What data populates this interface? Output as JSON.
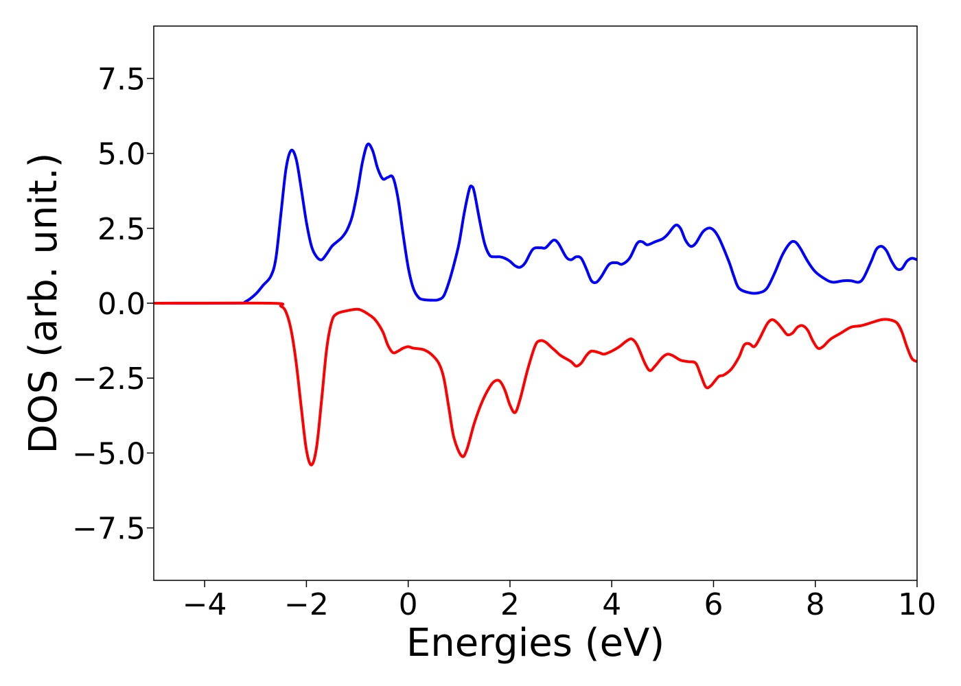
{
  "chart_data": {
    "type": "line",
    "xlabel": "Energies (eV)",
    "ylabel": "DOS (arb. unit.)",
    "xlim": [
      -5,
      10
    ],
    "ylim": [
      -9.25,
      9.25
    ],
    "grid": false,
    "x_ticks": [
      -4,
      -2,
      0,
      2,
      4,
      6,
      8,
      10
    ],
    "x_tick_labels": [
      "−4",
      "−2",
      "0",
      "2",
      "4",
      "6",
      "8",
      "10"
    ],
    "y_ticks": [
      -7.5,
      -5.0,
      -2.5,
      0.0,
      2.5,
      5.0,
      7.5
    ],
    "y_tick_labels": [
      "−7.5",
      "−5.0",
      "−2.5",
      "0.0",
      "2.5",
      "5.0",
      "7.5"
    ],
    "series": [
      {
        "color": "#0000ff",
        "points": [
          [
            -5.0,
            0.0
          ],
          [
            -3.4,
            0.0
          ],
          [
            -3.2,
            0.05
          ],
          [
            -3.0,
            0.3
          ],
          [
            -2.85,
            0.6
          ],
          [
            -2.7,
            0.9
          ],
          [
            -2.6,
            1.5
          ],
          [
            -2.5,
            3.0
          ],
          [
            -2.4,
            4.5
          ],
          [
            -2.3,
            5.1
          ],
          [
            -2.2,
            4.8
          ],
          [
            -2.1,
            3.8
          ],
          [
            -2.0,
            2.7
          ],
          [
            -1.9,
            1.9
          ],
          [
            -1.8,
            1.55
          ],
          [
            -1.7,
            1.45
          ],
          [
            -1.6,
            1.65
          ],
          [
            -1.5,
            1.9
          ],
          [
            -1.4,
            2.05
          ],
          [
            -1.3,
            2.2
          ],
          [
            -1.2,
            2.45
          ],
          [
            -1.1,
            2.9
          ],
          [
            -1.0,
            3.7
          ],
          [
            -0.9,
            4.7
          ],
          [
            -0.8,
            5.3
          ],
          [
            -0.7,
            5.1
          ],
          [
            -0.6,
            4.5
          ],
          [
            -0.5,
            4.15
          ],
          [
            -0.4,
            4.2
          ],
          [
            -0.3,
            4.2
          ],
          [
            -0.2,
            3.5
          ],
          [
            -0.1,
            2.3
          ],
          [
            0.0,
            1.2
          ],
          [
            0.1,
            0.5
          ],
          [
            0.2,
            0.2
          ],
          [
            0.3,
            0.12
          ],
          [
            0.5,
            0.1
          ],
          [
            0.6,
            0.12
          ],
          [
            0.7,
            0.25
          ],
          [
            0.8,
            0.7
          ],
          [
            0.9,
            1.3
          ],
          [
            1.0,
            2.0
          ],
          [
            1.1,
            3.0
          ],
          [
            1.2,
            3.8
          ],
          [
            1.25,
            3.9
          ],
          [
            1.3,
            3.7
          ],
          [
            1.4,
            2.8
          ],
          [
            1.5,
            2.0
          ],
          [
            1.6,
            1.6
          ],
          [
            1.7,
            1.55
          ],
          [
            1.8,
            1.55
          ],
          [
            1.9,
            1.5
          ],
          [
            2.0,
            1.4
          ],
          [
            2.1,
            1.25
          ],
          [
            2.2,
            1.2
          ],
          [
            2.3,
            1.35
          ],
          [
            2.45,
            1.8
          ],
          [
            2.6,
            1.85
          ],
          [
            2.7,
            1.85
          ],
          [
            2.85,
            2.1
          ],
          [
            2.95,
            2.0
          ],
          [
            3.1,
            1.55
          ],
          [
            3.2,
            1.45
          ],
          [
            3.3,
            1.55
          ],
          [
            3.4,
            1.5
          ],
          [
            3.5,
            1.15
          ],
          [
            3.6,
            0.75
          ],
          [
            3.7,
            0.7
          ],
          [
            3.8,
            0.9
          ],
          [
            3.95,
            1.3
          ],
          [
            4.1,
            1.35
          ],
          [
            4.2,
            1.3
          ],
          [
            4.35,
            1.5
          ],
          [
            4.5,
            2.0
          ],
          [
            4.6,
            2.05
          ],
          [
            4.7,
            1.95
          ],
          [
            4.85,
            2.05
          ],
          [
            5.0,
            2.15
          ],
          [
            5.1,
            2.3
          ],
          [
            5.25,
            2.6
          ],
          [
            5.35,
            2.5
          ],
          [
            5.45,
            2.1
          ],
          [
            5.55,
            1.9
          ],
          [
            5.65,
            2.0
          ],
          [
            5.8,
            2.4
          ],
          [
            5.95,
            2.5
          ],
          [
            6.1,
            2.2
          ],
          [
            6.3,
            1.4
          ],
          [
            6.4,
            0.9
          ],
          [
            6.5,
            0.5
          ],
          [
            6.7,
            0.35
          ],
          [
            6.9,
            0.35
          ],
          [
            7.05,
            0.5
          ],
          [
            7.2,
            1.0
          ],
          [
            7.35,
            1.6
          ],
          [
            7.5,
            2.0
          ],
          [
            7.6,
            2.05
          ],
          [
            7.7,
            1.85
          ],
          [
            7.85,
            1.4
          ],
          [
            8.0,
            1.05
          ],
          [
            8.2,
            0.8
          ],
          [
            8.35,
            0.7
          ],
          [
            8.55,
            0.75
          ],
          [
            8.7,
            0.75
          ],
          [
            8.85,
            0.7
          ],
          [
            8.95,
            0.85
          ],
          [
            9.1,
            1.4
          ],
          [
            9.2,
            1.8
          ],
          [
            9.3,
            1.9
          ],
          [
            9.4,
            1.75
          ],
          [
            9.5,
            1.4
          ],
          [
            9.6,
            1.15
          ],
          [
            9.7,
            1.15
          ],
          [
            9.8,
            1.4
          ],
          [
            9.9,
            1.5
          ],
          [
            10.0,
            1.45
          ]
        ]
      },
      {
        "color": "#ff0000",
        "points": [
          [
            -5.0,
            0.0
          ],
          [
            -2.7,
            0.0
          ],
          [
            -2.5,
            -0.1
          ],
          [
            -2.4,
            -0.3
          ],
          [
            -2.3,
            -0.9
          ],
          [
            -2.2,
            -2.0
          ],
          [
            -2.1,
            -3.5
          ],
          [
            -2.0,
            -4.9
          ],
          [
            -1.9,
            -5.4
          ],
          [
            -1.8,
            -4.8
          ],
          [
            -1.7,
            -3.2
          ],
          [
            -1.6,
            -1.5
          ],
          [
            -1.5,
            -0.6
          ],
          [
            -1.4,
            -0.35
          ],
          [
            -1.2,
            -0.25
          ],
          [
            -1.0,
            -0.2
          ],
          [
            -0.9,
            -0.25
          ],
          [
            -0.8,
            -0.35
          ],
          [
            -0.65,
            -0.55
          ],
          [
            -0.5,
            -0.95
          ],
          [
            -0.4,
            -1.4
          ],
          [
            -0.3,
            -1.65
          ],
          [
            -0.2,
            -1.6
          ],
          [
            -0.1,
            -1.5
          ],
          [
            0.0,
            -1.45
          ],
          [
            0.1,
            -1.5
          ],
          [
            0.3,
            -1.55
          ],
          [
            0.45,
            -1.7
          ],
          [
            0.6,
            -2.0
          ],
          [
            0.7,
            -2.5
          ],
          [
            0.8,
            -3.5
          ],
          [
            0.9,
            -4.5
          ],
          [
            1.05,
            -5.1
          ],
          [
            1.15,
            -4.9
          ],
          [
            1.3,
            -4.0
          ],
          [
            1.45,
            -3.3
          ],
          [
            1.6,
            -2.8
          ],
          [
            1.7,
            -2.6
          ],
          [
            1.8,
            -2.6
          ],
          [
            1.9,
            -2.9
          ],
          [
            2.0,
            -3.4
          ],
          [
            2.1,
            -3.65
          ],
          [
            2.2,
            -3.2
          ],
          [
            2.35,
            -2.2
          ],
          [
            2.5,
            -1.4
          ],
          [
            2.6,
            -1.25
          ],
          [
            2.7,
            -1.3
          ],
          [
            2.8,
            -1.45
          ],
          [
            2.9,
            -1.6
          ],
          [
            3.0,
            -1.75
          ],
          [
            3.2,
            -1.95
          ],
          [
            3.3,
            -2.1
          ],
          [
            3.4,
            -2.0
          ],
          [
            3.5,
            -1.75
          ],
          [
            3.6,
            -1.6
          ],
          [
            3.75,
            -1.65
          ],
          [
            3.85,
            -1.7
          ],
          [
            4.0,
            -1.6
          ],
          [
            4.15,
            -1.45
          ],
          [
            4.3,
            -1.25
          ],
          [
            4.4,
            -1.2
          ],
          [
            4.5,
            -1.4
          ],
          [
            4.65,
            -2.0
          ],
          [
            4.75,
            -2.25
          ],
          [
            4.85,
            -2.1
          ],
          [
            5.0,
            -1.8
          ],
          [
            5.1,
            -1.7
          ],
          [
            5.2,
            -1.75
          ],
          [
            5.35,
            -1.9
          ],
          [
            5.5,
            -1.95
          ],
          [
            5.65,
            -2.0
          ],
          [
            5.75,
            -2.4
          ],
          [
            5.85,
            -2.8
          ],
          [
            5.95,
            -2.75
          ],
          [
            6.1,
            -2.45
          ],
          [
            6.2,
            -2.4
          ],
          [
            6.35,
            -2.2
          ],
          [
            6.5,
            -1.8
          ],
          [
            6.6,
            -1.4
          ],
          [
            6.7,
            -1.35
          ],
          [
            6.8,
            -1.45
          ],
          [
            6.9,
            -1.2
          ],
          [
            7.05,
            -0.7
          ],
          [
            7.15,
            -0.55
          ],
          [
            7.25,
            -0.65
          ],
          [
            7.35,
            -0.85
          ],
          [
            7.45,
            -1.05
          ],
          [
            7.55,
            -1.0
          ],
          [
            7.65,
            -0.8
          ],
          [
            7.75,
            -0.75
          ],
          [
            7.85,
            -0.9
          ],
          [
            7.95,
            -1.25
          ],
          [
            8.05,
            -1.5
          ],
          [
            8.15,
            -1.45
          ],
          [
            8.3,
            -1.2
          ],
          [
            8.5,
            -1.0
          ],
          [
            8.7,
            -0.8
          ],
          [
            8.9,
            -0.75
          ],
          [
            9.1,
            -0.65
          ],
          [
            9.3,
            -0.55
          ],
          [
            9.45,
            -0.55
          ],
          [
            9.6,
            -0.65
          ],
          [
            9.7,
            -0.95
          ],
          [
            9.8,
            -1.45
          ],
          [
            9.9,
            -1.85
          ],
          [
            10.0,
            -1.95
          ]
        ]
      }
    ]
  }
}
